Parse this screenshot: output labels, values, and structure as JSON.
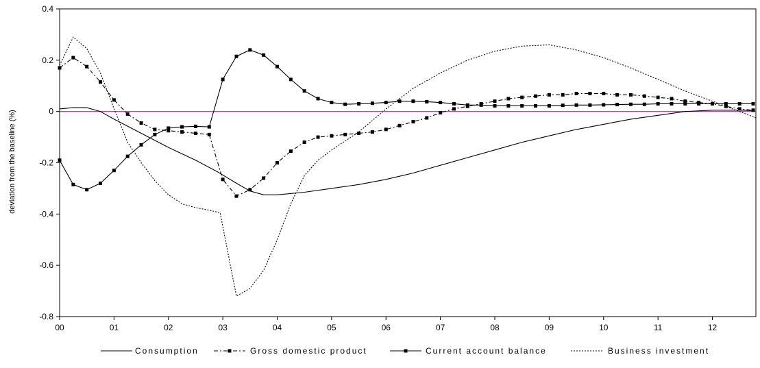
{
  "chart_data": {
    "type": "line",
    "title": "",
    "xlabel": "",
    "ylabel": "deviation from the baseline (%)",
    "ylim": [
      -0.8,
      0.4
    ],
    "yticks": [
      "0.4",
      "0.2",
      "0",
      "-0.2",
      "-0.4",
      "-0.6",
      "-0.8"
    ],
    "xlim": [
      0,
      12.8
    ],
    "xtick_labels": [
      "00",
      "01",
      "02",
      "03",
      "04",
      "05",
      "06",
      "07",
      "08",
      "09",
      "10",
      "11",
      "12"
    ],
    "baseline": {
      "value": 0,
      "color": "#a0329b"
    },
    "grid": false,
    "legend_position": "bottom",
    "series": [
      {
        "name": "Consumption",
        "style": "solid",
        "marker": "none",
        "x": [
          0,
          0.25,
          0.5,
          0.75,
          1.0,
          1.5,
          2.0,
          2.5,
          2.9,
          3.25,
          3.5,
          3.75,
          4.0,
          4.5,
          5.0,
          5.5,
          6.0,
          6.5,
          7.0,
          7.5,
          8.0,
          8.5,
          9.0,
          9.5,
          10.0,
          10.5,
          11.0,
          11.5,
          12.0,
          12.5,
          12.75
        ],
        "values": [
          0.01,
          0.015,
          0.015,
          0.0,
          -0.03,
          -0.085,
          -0.14,
          -0.19,
          -0.235,
          -0.28,
          -0.31,
          -0.325,
          -0.325,
          -0.315,
          -0.3,
          -0.285,
          -0.265,
          -0.24,
          -0.21,
          -0.18,
          -0.15,
          -0.12,
          -0.095,
          -0.07,
          -0.05,
          -0.03,
          -0.015,
          0.0,
          0.005,
          0.005,
          0.003
        ]
      },
      {
        "name": "Gross domestic product",
        "style": "dash-dot",
        "marker": "square",
        "x": [
          0,
          0.25,
          0.5,
          0.75,
          1.0,
          1.25,
          1.5,
          1.75,
          2.0,
          2.25,
          2.5,
          2.75,
          3.0,
          3.25,
          3.5,
          3.75,
          4.0,
          4.25,
          4.5,
          4.75,
          5.0,
          5.25,
          5.5,
          5.75,
          6.0,
          6.25,
          6.5,
          6.75,
          7.0,
          7.25,
          7.5,
          7.75,
          8.0,
          8.25,
          8.5,
          8.75,
          9.0,
          9.25,
          9.5,
          9.75,
          10.0,
          10.25,
          10.5,
          10.75,
          11.0,
          11.25,
          11.5,
          11.75,
          12.0,
          12.25,
          12.5,
          12.75
        ],
        "values": [
          0.17,
          0.21,
          0.175,
          0.115,
          0.045,
          -0.01,
          -0.045,
          -0.07,
          -0.075,
          -0.08,
          -0.085,
          -0.09,
          -0.265,
          -0.33,
          -0.305,
          -0.26,
          -0.2,
          -0.155,
          -0.12,
          -0.1,
          -0.095,
          -0.09,
          -0.085,
          -0.08,
          -0.07,
          -0.055,
          -0.04,
          -0.025,
          -0.005,
          0.01,
          0.02,
          0.03,
          0.04,
          0.05,
          0.055,
          0.06,
          0.065,
          0.065,
          0.07,
          0.07,
          0.07,
          0.065,
          0.065,
          0.06,
          0.055,
          0.05,
          0.04,
          0.035,
          0.03,
          0.02,
          0.01,
          0.005
        ]
      },
      {
        "name": "Current account balance",
        "style": "solid",
        "marker": "square",
        "x": [
          0,
          0.25,
          0.5,
          0.75,
          1.0,
          1.25,
          1.5,
          1.75,
          2.0,
          2.25,
          2.5,
          2.75,
          3.0,
          3.25,
          3.5,
          3.75,
          4.0,
          4.25,
          4.5,
          4.75,
          5.0,
          5.25,
          5.5,
          5.75,
          6.0,
          6.25,
          6.5,
          6.75,
          7.0,
          7.25,
          7.5,
          7.75,
          8.0,
          8.25,
          8.5,
          8.75,
          9.0,
          9.25,
          9.5,
          9.75,
          10.0,
          10.25,
          10.5,
          10.75,
          11.0,
          11.25,
          11.5,
          11.75,
          12.0,
          12.25,
          12.5,
          12.75
        ],
        "values": [
          -0.19,
          -0.285,
          -0.305,
          -0.28,
          -0.23,
          -0.175,
          -0.13,
          -0.09,
          -0.065,
          -0.06,
          -0.058,
          -0.06,
          0.125,
          0.215,
          0.24,
          0.22,
          0.175,
          0.125,
          0.08,
          0.05,
          0.035,
          0.028,
          0.03,
          0.032,
          0.035,
          0.04,
          0.04,
          0.038,
          0.035,
          0.03,
          0.025,
          0.025,
          0.022,
          0.022,
          0.022,
          0.022,
          0.022,
          0.024,
          0.025,
          0.025,
          0.026,
          0.027,
          0.028,
          0.028,
          0.03,
          0.03,
          0.03,
          0.03,
          0.03,
          0.03,
          0.03,
          0.03
        ]
      },
      {
        "name": "Business investment",
        "style": "dotted",
        "marker": "none",
        "x": [
          0,
          0.25,
          0.5,
          0.75,
          1.0,
          1.25,
          1.5,
          1.75,
          2.0,
          2.25,
          2.5,
          2.75,
          2.95,
          3.25,
          3.5,
          3.75,
          4.0,
          4.25,
          4.5,
          4.75,
          5.0,
          5.5,
          6.0,
          6.5,
          7.0,
          7.5,
          8.0,
          8.5,
          9.0,
          9.5,
          10.0,
          10.5,
          11.0,
          11.5,
          12.0,
          12.5,
          12.8
        ],
        "values": [
          0.18,
          0.29,
          0.245,
          0.15,
          0.01,
          -0.12,
          -0.2,
          -0.27,
          -0.325,
          -0.36,
          -0.375,
          -0.385,
          -0.395,
          -0.72,
          -0.69,
          -0.62,
          -0.5,
          -0.36,
          -0.25,
          -0.19,
          -0.15,
          -0.08,
          0.01,
          0.09,
          0.15,
          0.2,
          0.235,
          0.255,
          0.26,
          0.24,
          0.21,
          0.17,
          0.125,
          0.08,
          0.04,
          0.0,
          -0.025
        ]
      }
    ]
  }
}
